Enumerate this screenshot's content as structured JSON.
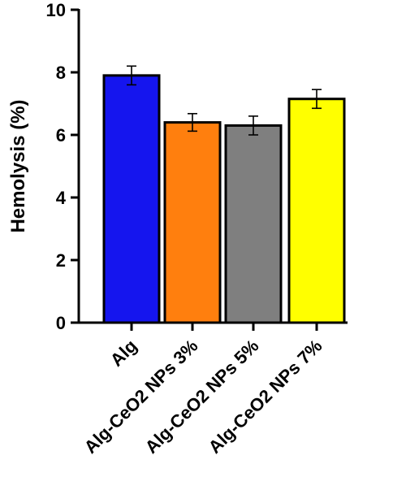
{
  "chart_data": {
    "type": "bar",
    "categories": [
      "Alg",
      "Alg-CeO2 NPs 3%",
      "Alg-CeO2 NPs 5%",
      "Alg-CeO2 NPs 7%"
    ],
    "values": [
      7.9,
      6.4,
      6.3,
      7.15
    ],
    "errors": [
      0.3,
      0.28,
      0.3,
      0.3
    ],
    "colors": [
      "#1515ee",
      "#ff7f0e",
      "#7f7f7f",
      "#ffff00"
    ],
    "ylabel": "Hemolysis (%)",
    "xlabel": "",
    "ylim": [
      0,
      10
    ],
    "yticks": [
      0,
      2,
      4,
      6,
      8,
      10
    ],
    "grid": false,
    "legend": "none"
  }
}
